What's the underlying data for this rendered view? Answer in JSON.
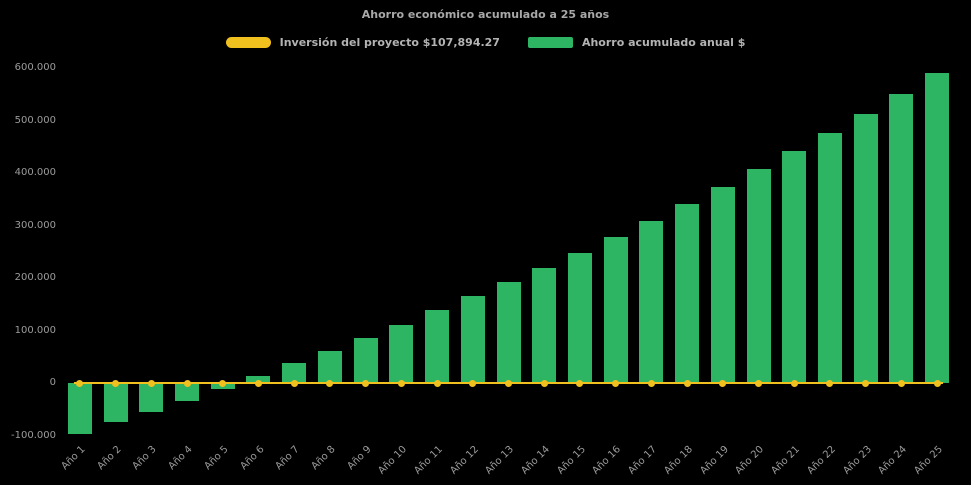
{
  "page": {
    "background": "#000000",
    "text_color": "#9b9b9b"
  },
  "chart_data": {
    "type": "bar",
    "title": "Ahorro económico acumulado a 25 años",
    "categories": [
      "Año 1",
      "Año 2",
      "Año 3",
      "Año 4",
      "Año 5",
      "Año 6",
      "Año 7",
      "Año 8",
      "Año 9",
      "Año 10",
      "Año 11",
      "Año 12",
      "Año 13",
      "Año 14",
      "Año 15",
      "Año 16",
      "Año 17",
      "Año 18",
      "Año 19",
      "Año 20",
      "Año 21",
      "Año 22",
      "Año 23",
      "Año 24",
      "Año 25"
    ],
    "series": [
      {
        "name": "Inversión del proyecto $107,894.27",
        "type": "line",
        "color": "#F0C01F",
        "values": [
          0,
          0,
          0,
          0,
          0,
          0,
          0,
          0,
          0,
          0,
          0,
          0,
          0,
          0,
          0,
          0,
          0,
          0,
          0,
          0,
          0,
          0,
          0,
          0,
          0
        ]
      },
      {
        "name": "Ahorro acumulado anual $",
        "type": "bar",
        "color": "#2EB564",
        "values": [
          -96000,
          -73000,
          -54000,
          -33000,
          -11000,
          15000,
          38000,
          62000,
          87000,
          112000,
          139000,
          166000,
          192000,
          219000,
          248000,
          278000,
          309000,
          341000,
          374000,
          407000,
          442000,
          477000,
          513000,
          551000,
          590000
        ]
      }
    ],
    "xlabel": "",
    "ylabel": "",
    "ylim": [
      -100000,
      600000
    ],
    "yticks": [
      {
        "label": "600.000",
        "value": 600000
      },
      {
        "label": "500.000",
        "value": 500000
      },
      {
        "label": "400.000",
        "value": 400000
      },
      {
        "label": "300.000",
        "value": 300000
      },
      {
        "label": "200.000",
        "value": 200000
      },
      {
        "label": "100.000",
        "value": 100000
      },
      {
        "label": "0",
        "value": 0
      },
      {
        "label": "-100.000",
        "value": -100000
      }
    ],
    "grid": false,
    "legend_position": "top"
  }
}
